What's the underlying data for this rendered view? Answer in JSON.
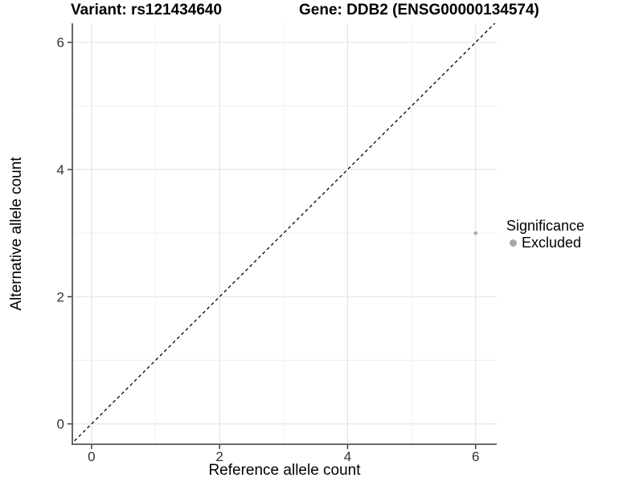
{
  "chart_data": {
    "type": "scatter",
    "title_variant": "Variant: rs121434640",
    "title_gene": "Gene: DDB2 (ENSG00000134574)",
    "xlabel": "Reference allele count",
    "ylabel": "Alternative allele count",
    "xlim": [
      -0.3,
      6.33
    ],
    "ylim": [
      -0.32,
      6.3
    ],
    "x_ticks": [
      0,
      2,
      4,
      6
    ],
    "y_ticks": [
      0,
      2,
      4,
      6
    ],
    "x_minor_gridlines": [
      1,
      3,
      5
    ],
    "y_minor_gridlines": [
      1,
      3,
      5
    ],
    "grid": true,
    "points": [
      {
        "x": 6,
        "y": 3,
        "significance": "Excluded"
      }
    ],
    "identity_line": {
      "slope": 1,
      "intercept": 0,
      "linetype": "dashed",
      "color": "#000000"
    },
    "legend": {
      "title": "Significance",
      "position": "right",
      "items": [
        {
          "label": "Excluded",
          "color": "#a8a8a8"
        }
      ]
    },
    "colors": {
      "background": "#ffffff",
      "grid_major": "#e3e3e3",
      "grid_minor": "#f0f0f0",
      "axis_line": "#565656",
      "tick_mark": "#333333",
      "tick_text": "#303030",
      "point": "#a8a8a8"
    }
  }
}
